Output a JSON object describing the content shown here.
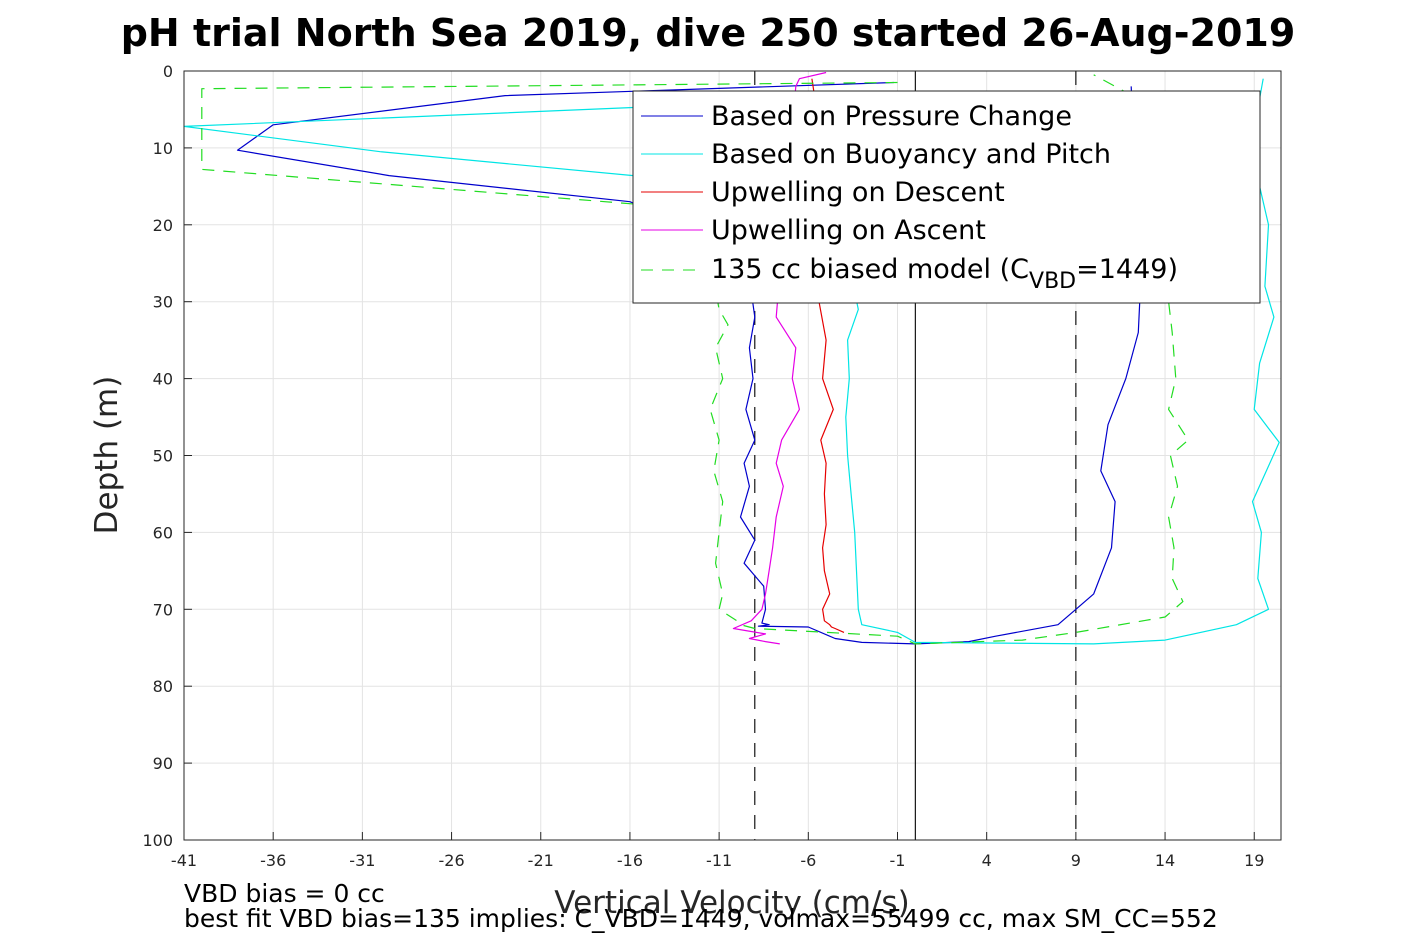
{
  "chart_data": {
    "type": "line",
    "title": "pH trial North Sea 2019, dive 250 started 26-Aug-2019",
    "xlabel": "Vertical Velocity (cm/s)",
    "ylabel": "Depth (m)",
    "xlim": [
      -41,
      20.5
    ],
    "ylim": [
      0,
      100
    ],
    "y_reversed": true,
    "grid": true,
    "xticks": [
      -41,
      -36,
      -31,
      -26,
      -21,
      -16,
      -11,
      -6,
      -1,
      4,
      9,
      14,
      19
    ],
    "yticks": [
      0,
      10,
      20,
      30,
      40,
      50,
      60,
      70,
      80,
      90,
      100
    ],
    "reference_lines": [
      {
        "x": 0,
        "style": "solid",
        "color": "#000000"
      },
      {
        "x": -9,
        "style": "dashed",
        "color": "#000000"
      },
      {
        "x": 9,
        "style": "dashed",
        "color": "#000000"
      }
    ],
    "legend_position": "top-right",
    "legend": [
      {
        "label": "Based on Pressure Change",
        "color": "#0000cc",
        "dash": "solid"
      },
      {
        "label": "Based on Buoyancy and Pitch",
        "color": "#00e5e5",
        "dash": "solid"
      },
      {
        "label": "Upwelling on Descent",
        "color": "#e60000",
        "dash": "solid"
      },
      {
        "label": "Upwelling on Ascent",
        "color": "#e600e6",
        "dash": "solid"
      },
      {
        "label": "135 cc biased model (C",
        "sub": "VBD",
        "tail": "=1449)",
        "color": "#22dd22",
        "dash": "dashed"
      }
    ],
    "series": [
      {
        "name": "Based on Pressure Change",
        "color": "#0000cc",
        "dash": "",
        "x": [
          -1.2,
          -23,
          -36,
          -38,
          -29.5,
          -16,
          -11,
          -9.3,
          -9,
          -9.3,
          -9.1,
          -9.5,
          -9,
          -9.6,
          -9.3,
          -9.8,
          -9,
          -9.6,
          -8.5,
          -8.4,
          -8.6,
          -8.2,
          -8.8,
          -6,
          -4.5,
          -3,
          0,
          3,
          4.5,
          8,
          9,
          10,
          11,
          11.2,
          10.4,
          10.8,
          11.8,
          12.5,
          12.6,
          12.4,
          12.1
        ],
        "y": [
          1.5,
          3.2,
          7,
          10.3,
          13.6,
          17,
          22,
          27,
          32,
          36,
          40,
          44,
          48,
          51,
          54,
          58,
          61,
          64,
          67,
          70,
          71.8,
          72,
          72.2,
          72.3,
          73.8,
          74.3,
          74.5,
          74.2,
          73.5,
          72,
          70,
          68,
          62,
          56,
          52,
          46,
          40,
          34,
          29,
          20,
          2
        ]
      },
      {
        "name": "Based on Buoyancy and Pitch",
        "color": "#00e5e5",
        "dash": "",
        "x": [
          -1,
          -41,
          -30,
          -14,
          -8,
          -4,
          -3.2,
          -3.8,
          -3.7,
          -3.9,
          -3.8,
          -3.6,
          -3.4,
          -3.3,
          -3.2,
          -3,
          -1,
          0,
          10,
          14,
          18,
          19.8,
          19.2,
          19.4,
          18.9,
          20.4,
          19,
          19.3,
          20.1,
          19.6,
          19.8,
          18.8,
          19.5
        ],
        "y": [
          3.3,
          7.2,
          10.5,
          14,
          18,
          22,
          31,
          35,
          40,
          45,
          50,
          55,
          60,
          65,
          70,
          72,
          73,
          74.3,
          74.5,
          74,
          72,
          70,
          66,
          60,
          56,
          48.3,
          44,
          38,
          32,
          28,
          20,
          10,
          1
        ]
      },
      {
        "name": "Upwelling on Descent",
        "color": "#e60000",
        "dash": "",
        "x": [
          -5.8,
          -5.6,
          -5.8,
          -5.6,
          -5.4,
          -5,
          -5.2,
          -4.6,
          -5.3,
          -5,
          -5.1,
          -5,
          -5.2,
          -5.1,
          -4.8,
          -5.2,
          -5.1,
          -4.8,
          -4.7,
          -4.5,
          -4
        ],
        "y": [
          1,
          4,
          10,
          20,
          30,
          35,
          40,
          44,
          48,
          51,
          55,
          59,
          62,
          65,
          68,
          70,
          71.5,
          72,
          72.3,
          72.5,
          73
        ]
      },
      {
        "name": "Upwelling on Ascent",
        "color": "#e600e6",
        "dash": "",
        "x": [
          -5,
          -6.5,
          -6.7,
          -7.8,
          -6.7,
          -6.9,
          -6.5,
          -7.5,
          -7.8,
          -7.4,
          -7.8,
          -8,
          -8.2,
          -8.4,
          -8.6,
          -9.2,
          -10.2,
          -8.4,
          -9.3,
          -8.4,
          -7.6
        ],
        "y": [
          0.2,
          1,
          2,
          32,
          36,
          40,
          44,
          48,
          51,
          54,
          58,
          62,
          65,
          68,
          70,
          71.5,
          72.5,
          73.2,
          73.8,
          74.2,
          74.5
        ]
      },
      {
        "name": "135 cc biased model (C_VBD=1449)",
        "color": "#22dd22",
        "dash": "12,9",
        "x": [
          -1,
          -40,
          -40,
          -12,
          -11,
          -10.5,
          -11.2,
          -10.8,
          -11.5,
          -11,
          -11.3,
          -10.8,
          -11,
          -11.2,
          -10.8,
          -11,
          -10,
          -9.8,
          -9,
          -1,
          0,
          6,
          9,
          14,
          15,
          14.4,
          14.5,
          14.2,
          14.7,
          14.3,
          15.3,
          14.2,
          14.6,
          14.4,
          14.2,
          14.3,
          14.2,
          13.5,
          13,
          12,
          10
        ],
        "y": [
          1.5,
          2.3,
          12.8,
          18,
          31,
          33,
          36,
          40,
          44,
          48,
          52,
          56,
          60,
          64,
          68,
          70,
          71.5,
          72,
          72.5,
          73.5,
          74.5,
          74,
          73,
          71,
          69,
          66,
          62,
          58,
          54,
          50,
          48,
          44,
          40,
          34,
          30,
          25,
          20,
          10,
          4,
          3,
          0.5
        ]
      }
    ]
  },
  "footer": {
    "line1": "VBD bias = 0 cc",
    "line2": "best fit VBD bias=135 implies: C_VBD=1449, volmax=55499 cc, max SM_CC=552"
  }
}
